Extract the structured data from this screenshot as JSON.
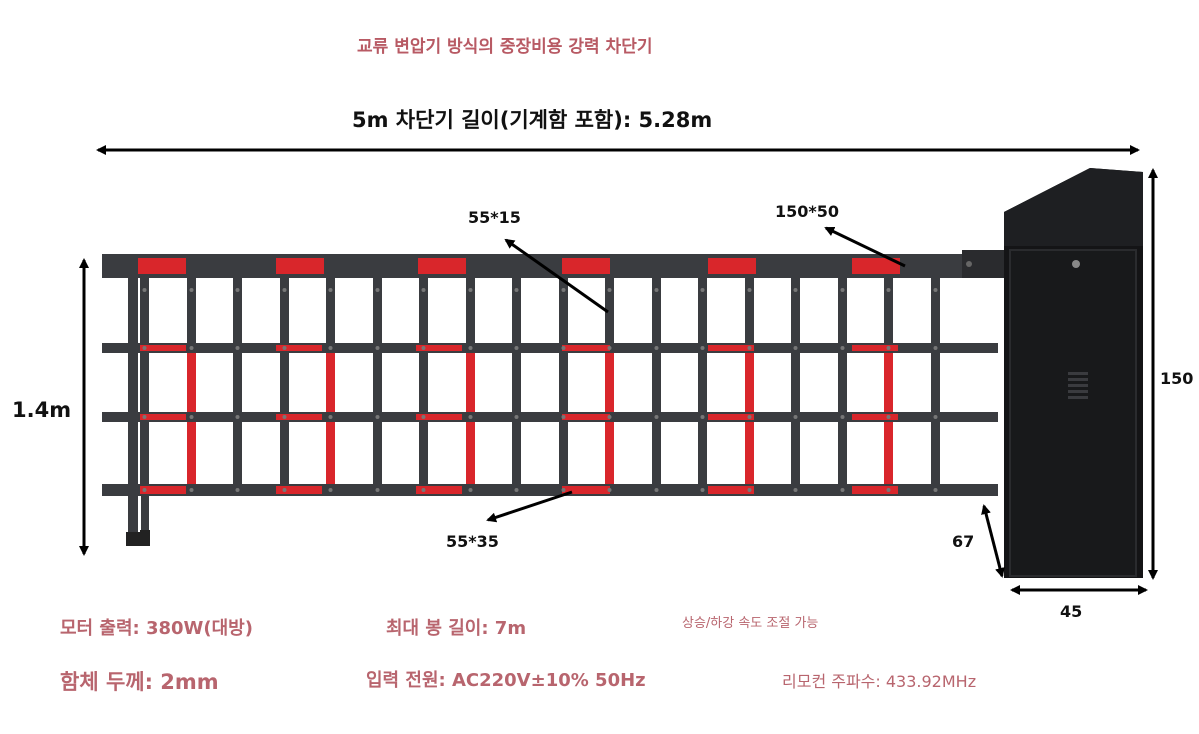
{
  "title": "교류 변압기 방식의 중장비용 강력 차단기",
  "dimensions": {
    "total_length": "5m 차단기 길이(기계함 포함): 5.28m",
    "top_bar": "55*15",
    "cabinet_top": "150*50",
    "bottom_bar": "55*35",
    "height": "1.4m",
    "cabinet_height": "150",
    "cabinet_depth": "67",
    "cabinet_width": "45"
  },
  "specs": {
    "motor": "모터 출력: 380W(대방)",
    "max_length": "최대 봉 길이: 7m",
    "speed": "상승/하강 속도 조절 가능",
    "thickness": "함체 두께: 2mm",
    "power": "입력 전원: AC220V±10% 50Hz",
    "remote": "리모컨 주파수: 433.92MHz"
  },
  "colors": {
    "frame": "#3a3c40",
    "reflector": "#d9262b",
    "cabinet": "#141416",
    "text_accent": "#b8656e"
  }
}
